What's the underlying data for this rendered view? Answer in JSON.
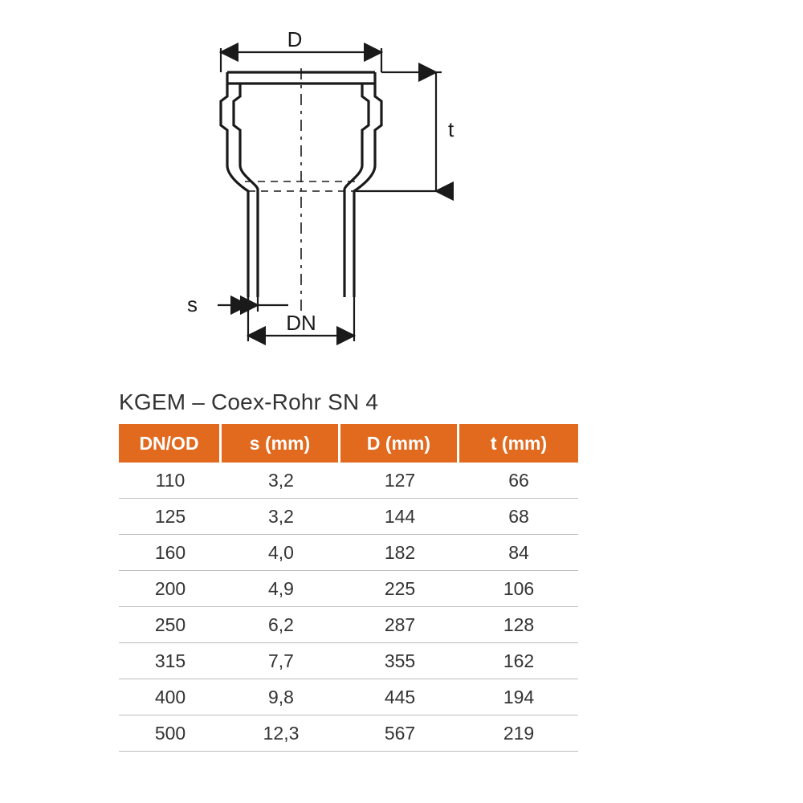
{
  "diagram": {
    "labels": {
      "D": "D",
      "t": "t",
      "s": "s",
      "DN": "DN"
    },
    "stroke": "#1a1a1a",
    "stroke_width_heavy": 3.2,
    "stroke_width_dim": 2.2,
    "dash_pattern": "12 6 3 6",
    "arrow_size": 11
  },
  "table": {
    "title": "KGEM – Coex-Rohr SN 4",
    "header_bg": "#e16a1f",
    "header_fg": "#ffffff",
    "row_border": "#bdbdbd",
    "cell_fg": "#333333",
    "font_size_header": 23,
    "font_size_cell": 23,
    "columns": [
      "DN/OD",
      "s (mm)",
      "D (mm)",
      "t (mm)"
    ],
    "rows": [
      [
        "110",
        "3,2",
        "127",
        "66"
      ],
      [
        "125",
        "3,2",
        "144",
        "68"
      ],
      [
        "160",
        "4,0",
        "182",
        "84"
      ],
      [
        "200",
        "4,9",
        "225",
        "106"
      ],
      [
        "250",
        "6,2",
        "287",
        "128"
      ],
      [
        "315",
        "7,7",
        "355",
        "162"
      ],
      [
        "400",
        "9,8",
        "445",
        "194"
      ],
      [
        "500",
        "12,3",
        "567",
        "219"
      ]
    ]
  }
}
